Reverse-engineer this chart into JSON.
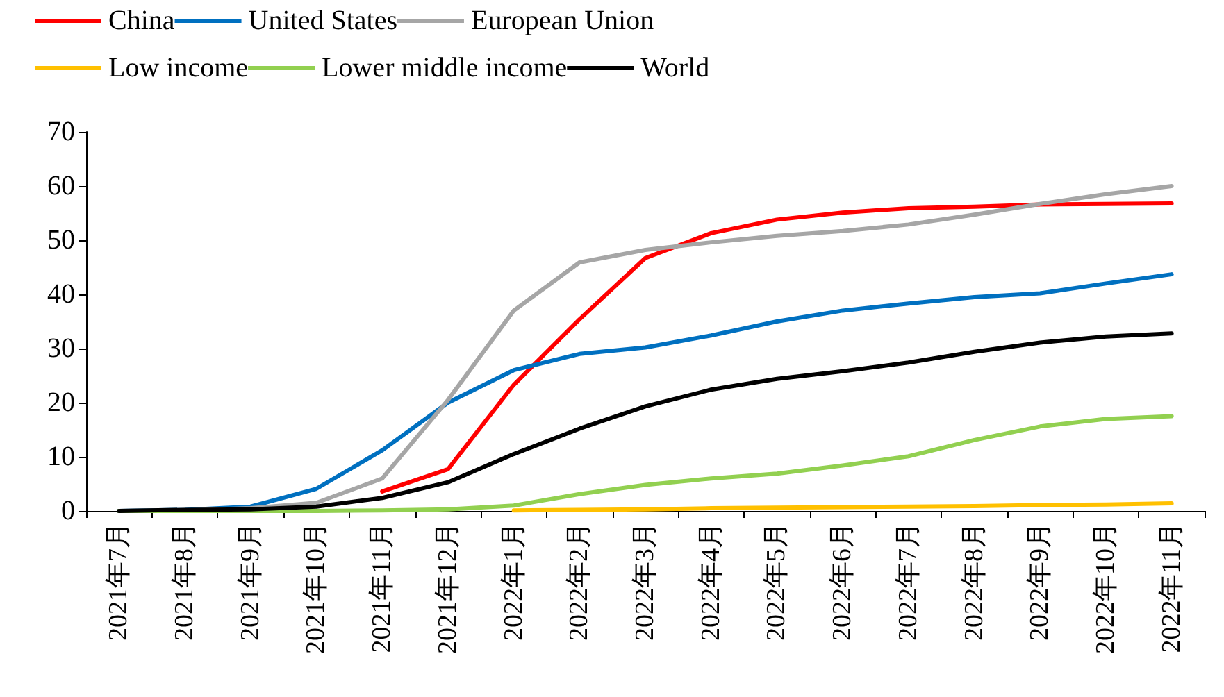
{
  "chart_data": {
    "type": "line",
    "categories": [
      "2021年7月",
      "2021年8月",
      "2021年9月",
      "2021年10月",
      "2021年11月",
      "2021年12月",
      "2022年1月",
      "2022年2月",
      "2022年3月",
      "2022年4月",
      "2022年5月",
      "2022年6月",
      "2022年7月",
      "2022年8月",
      "2022年9月",
      "2022年10月",
      "2022年11月"
    ],
    "series": [
      {
        "name": "China",
        "color": "#ff0000",
        "values": [
          null,
          null,
          null,
          null,
          3.6,
          7.7,
          23.3,
          35.4,
          46.7,
          51.3,
          53.8,
          55.1,
          55.9,
          56.2,
          56.6,
          56.7,
          56.8
        ]
      },
      {
        "name": "United States",
        "color": "#0070c0",
        "values": [
          0,
          0.2,
          0.8,
          4.1,
          11.2,
          20,
          26,
          29,
          30.2,
          32.4,
          35,
          37,
          38.3,
          39.5,
          40.2,
          42,
          43.7
        ]
      },
      {
        "name": "European Union",
        "color": "#a6a6a6",
        "values": [
          0,
          0.1,
          0.5,
          1.5,
          6,
          20.5,
          37,
          45.9,
          48.2,
          49.6,
          50.8,
          51.7,
          52.9,
          54.7,
          56.7,
          58.5,
          60
        ]
      },
      {
        "name": "Low income",
        "color": "#ffc000",
        "values": [
          null,
          null,
          null,
          null,
          null,
          null,
          0.1,
          0.2,
          0.3,
          0.5,
          0.6,
          0.7,
          0.8,
          0.9,
          1.1,
          1.2,
          1.4
        ]
      },
      {
        "name": "Lower middle income",
        "color": "#92d050",
        "values": [
          0,
          0,
          0,
          0,
          0.1,
          0.3,
          1,
          3.1,
          4.8,
          6,
          6.9,
          8.4,
          10.1,
          13.1,
          15.6,
          17,
          17.5
        ]
      },
      {
        "name": "World",
        "color": "#000000",
        "values": [
          0,
          0.2,
          0.3,
          0.8,
          2.4,
          5.3,
          10.5,
          15.2,
          19.3,
          22.4,
          24.4,
          25.8,
          27.4,
          29.4,
          31.1,
          32.2,
          32.8
        ]
      }
    ],
    "ylim": [
      0,
      70
    ],
    "yticks": [
      0,
      10,
      20,
      30,
      40,
      50,
      60,
      70
    ],
    "grid": false,
    "legend": "top",
    "marker": "none",
    "line_style": "solid"
  }
}
